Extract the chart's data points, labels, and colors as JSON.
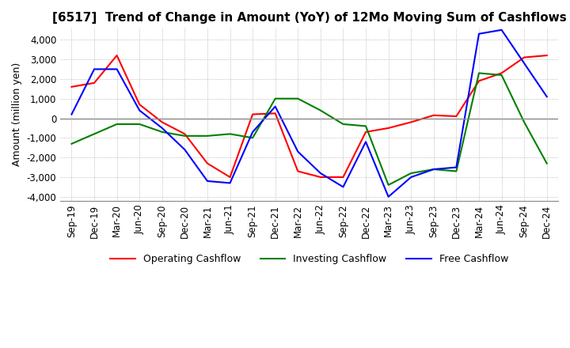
{
  "title": "[6517]  Trend of Change in Amount (YoY) of 12Mo Moving Sum of Cashflows",
  "ylabel": "Amount (million yen)",
  "ylim": [
    -4200,
    4600
  ],
  "yticks": [
    -4000,
    -3000,
    -2000,
    -1000,
    0,
    1000,
    2000,
    3000,
    4000
  ],
  "x_labels": [
    "Sep-19",
    "Dec-19",
    "Mar-20",
    "Jun-20",
    "Sep-20",
    "Dec-20",
    "Mar-21",
    "Jun-21",
    "Sep-21",
    "Dec-21",
    "Mar-22",
    "Jun-22",
    "Sep-22",
    "Dec-22",
    "Mar-23",
    "Jun-23",
    "Sep-23",
    "Dec-23",
    "Mar-24",
    "Jun-24",
    "Sep-24",
    "Dec-24"
  ],
  "operating": [
    1600,
    1800,
    3200,
    700,
    -200,
    -800,
    -2300,
    -3000,
    200,
    250,
    -2700,
    -3000,
    -3000,
    -700,
    -500,
    -200,
    150,
    100,
    1900,
    2300,
    3100,
    3200
  ],
  "investing": [
    -1300,
    -800,
    -300,
    -300,
    -700,
    -900,
    -900,
    -800,
    -1000,
    1000,
    1000,
    400,
    -300,
    -400,
    -3400,
    -2800,
    -2600,
    -2700,
    2300,
    2200,
    -200,
    -2300
  ],
  "free": [
    200,
    2500,
    2500,
    400,
    -500,
    -1600,
    -3200,
    -3300,
    -700,
    600,
    -1700,
    -2800,
    -3500,
    -1200,
    -4000,
    -3000,
    -2600,
    -2500,
    4300,
    4500,
    2800,
    1100
  ],
  "op_color": "#ff0000",
  "inv_color": "#008000",
  "free_color": "#0000ff",
  "bg_color": "#ffffff",
  "grid_color": "#aaaaaa",
  "title_fontsize": 11,
  "label_fontsize": 9,
  "tick_fontsize": 8.5
}
